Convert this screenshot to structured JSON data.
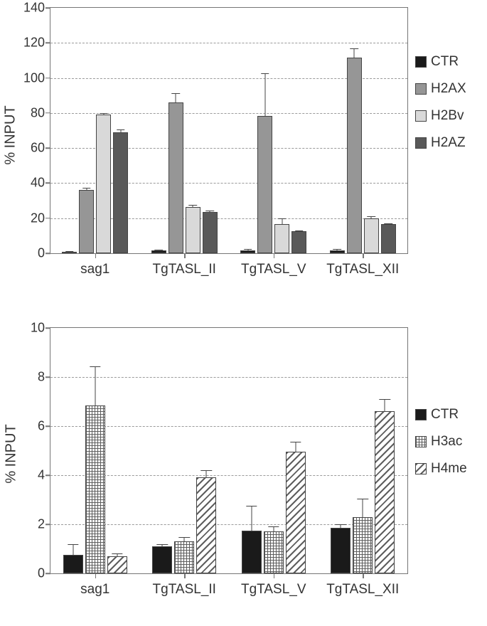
{
  "top_chart": {
    "type": "bar",
    "ylabel": "% INPUT",
    "ylim": [
      0,
      140
    ],
    "ytick_step": 20,
    "categories": [
      "sag1",
      "TgTASL_II",
      "TgTASL_V",
      "TgTASL_XII"
    ],
    "series": [
      {
        "name": "CTR",
        "style": "solid",
        "color": "#1a1a1a"
      },
      {
        "name": "H2AX",
        "style": "solid",
        "color": "#969696"
      },
      {
        "name": "H2Bv",
        "style": "solid",
        "color": "#d9d9d9"
      },
      {
        "name": "H2AZ",
        "style": "solid",
        "color": "#595959"
      }
    ],
    "data": {
      "sag1": {
        "values": [
          1.0,
          36.0,
          79.0,
          69.0
        ],
        "errors": [
          0.4,
          1.2,
          1.0,
          1.5
        ]
      },
      "TgTASL_II": {
        "values": [
          1.5,
          86.0,
          26.5,
          23.5
        ],
        "errors": [
          0.4,
          5.5,
          1.0,
          0.8
        ]
      },
      "TgTASL_V": {
        "values": [
          1.8,
          78.5,
          16.5,
          12.5
        ],
        "errors": [
          0.6,
          24.0,
          3.5,
          0.6
        ]
      },
      "TgTASL_XII": {
        "values": [
          1.8,
          111.5,
          20.0,
          16.5
        ],
        "errors": [
          0.5,
          5.5,
          1.2,
          0.6
        ]
      }
    },
    "grid_color": "#9a9a9a",
    "axis_color": "#767676",
    "label_fontsize": 20,
    "tick_fontsize": 18
  },
  "bottom_chart": {
    "type": "bar",
    "ylabel": "% INPUT",
    "ylim": [
      0,
      10
    ],
    "ytick_step": 2,
    "categories": [
      "sag1",
      "TgTASL_II",
      "TgTASL_V",
      "TgTASL_XII"
    ],
    "series": [
      {
        "name": "CTR",
        "style": "solid",
        "color": "#1a1a1a"
      },
      {
        "name": "H3ac",
        "style": "crosshatch",
        "color": "#5e5e5e"
      },
      {
        "name": "H4me",
        "style": "diagonal",
        "color": "#5e5e5e"
      }
    ],
    "data": {
      "sag1": {
        "values": [
          0.75,
          6.85,
          0.7
        ],
        "errors": [
          0.45,
          1.6,
          0.1
        ]
      },
      "TgTASL_II": {
        "values": [
          1.1,
          1.3,
          3.9
        ],
        "errors": [
          0.1,
          0.18,
          0.3
        ]
      },
      "TgTASL_V": {
        "values": [
          1.75,
          1.7,
          4.95
        ],
        "errors": [
          1.0,
          0.2,
          0.4
        ]
      },
      "TgTASL_XII": {
        "values": [
          1.85,
          2.3,
          6.6
        ],
        "errors": [
          0.15,
          0.75,
          0.5
        ]
      }
    },
    "grid_color": "#9a9a9a",
    "axis_color": "#767676",
    "label_fontsize": 20,
    "tick_fontsize": 18
  },
  "background_color": "#ffffff"
}
